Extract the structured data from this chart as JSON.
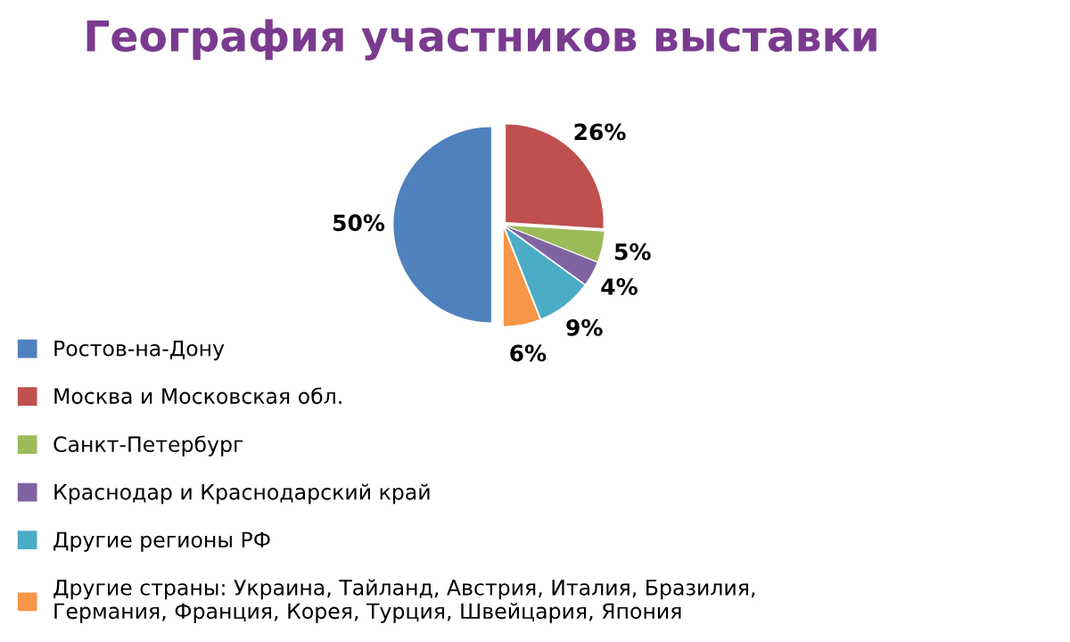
{
  "chart_data": {
    "type": "pie",
    "title": "География участников выставки",
    "categories": [
      "Ростов-на-Дону",
      "Москва и Московская обл.",
      "Санкт-Петербург",
      "Краснодар и Краснодарский край",
      "Другие регионы РФ",
      "Другие страны: Украина, Тайланд, Австрия, Италия, Бразилия, Германия, Франция, Корея, Турция, Швейцария, Япония"
    ],
    "values": [
      50,
      26,
      5,
      4,
      9,
      6
    ],
    "value_labels": [
      "50%",
      "26%",
      "5%",
      "4%",
      "9%",
      "6%"
    ],
    "colors": [
      "#4f81bd",
      "#c0504d",
      "#9bbb59",
      "#8064a2",
      "#4bacc6",
      "#f79646"
    ],
    "legend": "bottom left"
  }
}
